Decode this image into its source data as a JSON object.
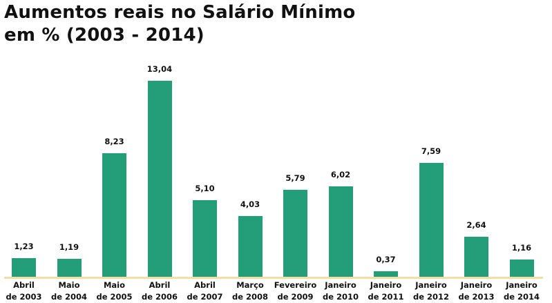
{
  "title_line1": "Aumentos reais no Salário Mínimo",
  "title_line2": "em % (2003 - 2014)",
  "colors": {
    "bar": "#249e78",
    "axis": "#f3dfa6",
    "text": "#111111"
  },
  "chart_data": {
    "type": "bar",
    "title": "Aumentos reais no Salário Mínimo em % (2003 - 2014)",
    "xlabel": "",
    "ylabel": "",
    "categories": [
      "Abril de 2003",
      "Maio de 2004",
      "Maio de 2005",
      "Abril de 2006",
      "Abril de 2007",
      "Março de 2008",
      "Fevereiro de 2009",
      "Janeiro de 2010",
      "Janeiro de 2011",
      "Janeiro de 2012",
      "Janeiro de 2013",
      "Janeiro de 2014"
    ],
    "values": [
      1.23,
      1.19,
      8.23,
      13.04,
      5.1,
      4.03,
      5.79,
      6.02,
      0.37,
      7.59,
      2.64,
      1.16
    ],
    "value_labels": [
      "1,23",
      "1,19",
      "8,23",
      "13,04",
      "5,10",
      "4,03",
      "5,79",
      "6,02",
      "0,37",
      "7,59",
      "2,64",
      "1,16"
    ],
    "ylim": [
      0,
      14
    ],
    "grid": false,
    "legend": null
  },
  "bars": [
    {
      "line1": "Abril",
      "line2": "de 2003",
      "label": "1,23",
      "value": 1.23
    },
    {
      "line1": "Maio",
      "line2": "de 2004",
      "label": "1,19",
      "value": 1.19
    },
    {
      "line1": "Maio",
      "line2": "de 2005",
      "label": "8,23",
      "value": 8.23
    },
    {
      "line1": "Abril",
      "line2": "de 2006",
      "label": "13,04",
      "value": 13.04
    },
    {
      "line1": "Abril",
      "line2": "de 2007",
      "label": "5,10",
      "value": 5.1
    },
    {
      "line1": "Março",
      "line2": "de 2008",
      "label": "4,03",
      "value": 4.03
    },
    {
      "line1": "Fevereiro",
      "line2": "de 2009",
      "label": "5,79",
      "value": 5.79
    },
    {
      "line1": "Janeiro",
      "line2": "de 2010",
      "label": "6,02",
      "value": 6.02
    },
    {
      "line1": "Janeiro",
      "line2": "de 2011",
      "label": "0,37",
      "value": 0.37
    },
    {
      "line1": "Janeiro",
      "line2": "de 2012",
      "label": "7,59",
      "value": 7.59
    },
    {
      "line1": "Janeiro",
      "line2": "de 2013",
      "label": "2,64",
      "value": 2.64
    },
    {
      "line1": "Janeiro",
      "line2": "de 2014",
      "label": "1,16",
      "value": 1.16
    }
  ]
}
